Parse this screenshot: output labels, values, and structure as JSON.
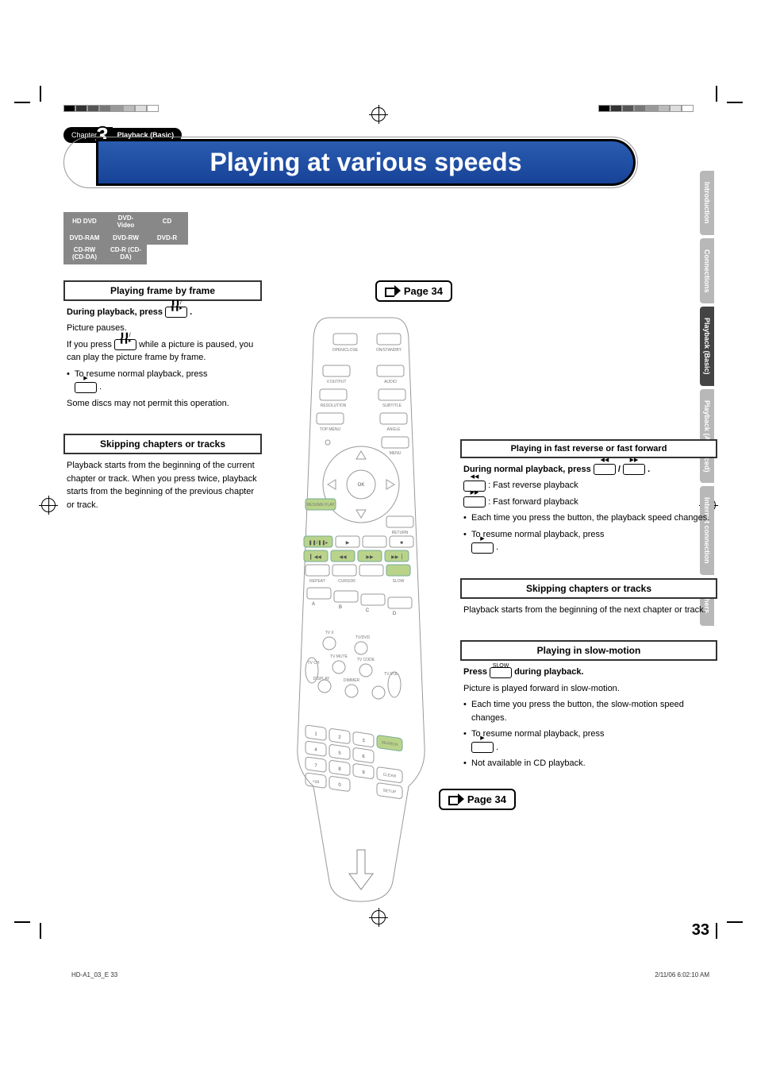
{
  "printmarks": {
    "colorbar_left": [
      "#000000",
      "#333333",
      "#555555",
      "#777777",
      "#999999",
      "#bbbbbb",
      "#dddddd",
      "#ffffff"
    ],
    "colorbar_right": [
      "#000000",
      "#333333",
      "#555555",
      "#777777",
      "#999999",
      "#bbbbbb",
      "#dddddd",
      "#ffffff"
    ]
  },
  "chapter": {
    "label": "Chapter",
    "number": "3",
    "section": "Playback (Basic)"
  },
  "title": "Playing at various speeds",
  "disc_types": {
    "row1": [
      "HD DVD",
      "DVD-Video",
      "CD"
    ],
    "row2": [
      "DVD-RAM",
      "DVD-RW",
      "DVD-R"
    ],
    "row3": [
      "CD-RW (CD-DA)",
      "CD-R (CD-DA)",
      ""
    ]
  },
  "page_refs": {
    "top": "Page 34",
    "mid": "Page 34"
  },
  "left": {
    "frame": {
      "title": "Playing frame by frame",
      "instr_prefix": "During playback, press ",
      "instr_suffix": ".",
      "body1": "Picture pauses.",
      "body2a": "If you press ",
      "body2b": " while a picture is paused, you can play the picture frame by frame.",
      "bullet1": "To resume normal playback, press ",
      "note": "Some discs may not permit this operation."
    },
    "skip_back": {
      "title": "Skipping chapters or tracks",
      "body": "Playback starts from the beginning of the current chapter or track. When you press twice, playback starts from the beginning of the previous chapter or track."
    }
  },
  "right": {
    "fast": {
      "title": "Playing in fast reverse or fast forward",
      "instr_prefix": "During normal playback, press ",
      "instr_mid": " / ",
      "instr_suffix": ".",
      "rev_label": ": Fast reverse playback",
      "fwd_label": ": Fast forward playback",
      "bullet1": "Each time you press the button, the playback speed changes.",
      "bullet2": "To resume normal playback, press "
    },
    "skip_fwd": {
      "title": "Skipping chapters or tracks",
      "body": "Playback starts from the beginning of the next chapter or track."
    },
    "slow": {
      "title": "Playing in slow-motion",
      "instr_prefix": "Press ",
      "instr_suffix": " during playback.",
      "body1": "Picture is played forward in slow-motion.",
      "bullet1": "Each time you press the button, the slow-motion speed changes.",
      "bullet2": "To resume normal playback, press ",
      "bullet3": "Not available in CD playback."
    }
  },
  "side_tabs": [
    "Introduction",
    "Connections",
    "Playback (Basic)",
    "Playback (Advanced)",
    "Internet connection",
    "Others"
  ],
  "active_tab_index": 2,
  "page_number": "33",
  "footer": {
    "left": "HD-A1_03_E   33",
    "right": "2/11/06   6:02:10 AM"
  },
  "icons": {
    "pause_step": "❚❚/❚❚▸",
    "play": "▶",
    "rev": "◀◀",
    "fwd": "▶▶",
    "slow": "SLOW",
    "skip_prev": "▎◀◀",
    "skip_next": "▶▶▕"
  },
  "remote": {
    "row1": [
      "OPEN/CLOSE",
      "",
      "I/ ON/STANDBY"
    ],
    "row2": [
      "V.OUTPUT",
      "",
      "AUDIO"
    ],
    "row3": [
      "RESOLUTION",
      "",
      "SUBTITLE"
    ],
    "row4": [
      "TOP MENU",
      "",
      "ANGLE"
    ],
    "row5": [
      "",
      "",
      "MENU"
    ],
    "dpad_center": "OK",
    "resume": "RESUME PLAY",
    "return": "RETURN",
    "transport_row_labels": [
      "REPEAT",
      "CURSOR",
      "SLOW"
    ],
    "abcd": [
      "A",
      "B",
      "C",
      "D"
    ],
    "tv_row": [
      "TV I/",
      "TV/DVD"
    ],
    "tv_row2": [
      "TV CH",
      "TV MUTE",
      "TV CODE",
      "TV VOL"
    ],
    "tv_row3": [
      "DISPLAY",
      "DIMMER"
    ],
    "numpad": [
      [
        "1",
        "2",
        "3",
        "SEARCH"
      ],
      [
        "4",
        "5",
        "6",
        ""
      ],
      [
        "7",
        "8",
        "9",
        "CLEAR"
      ],
      [
        "+10",
        "0",
        "",
        "SETUP"
      ]
    ]
  }
}
